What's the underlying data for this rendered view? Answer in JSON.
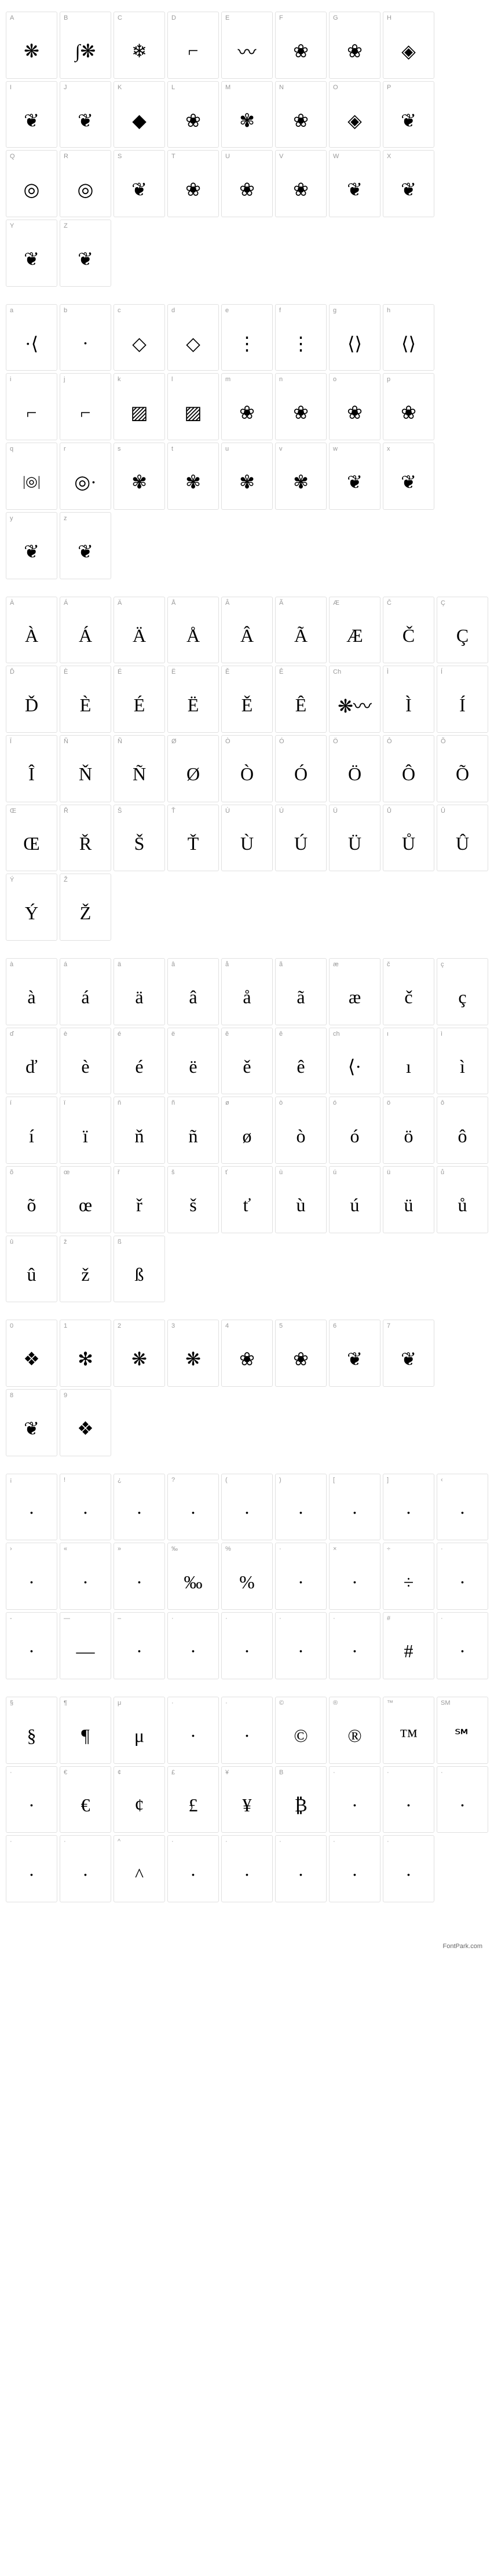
{
  "sections": [
    {
      "id": "upper",
      "cells": [
        {
          "label": "A",
          "glyph": "❋"
        },
        {
          "label": "B",
          "glyph": "∫❋"
        },
        {
          "label": "C",
          "glyph": "❄"
        },
        {
          "label": "D",
          "glyph": "⌐"
        },
        {
          "label": "E",
          "glyph": "〰"
        },
        {
          "label": "F",
          "glyph": "❀"
        },
        {
          "label": "G",
          "glyph": "❀"
        },
        {
          "label": "H",
          "glyph": "◈"
        },
        {
          "empty": true
        },
        {
          "label": "I",
          "glyph": "❦"
        },
        {
          "label": "J",
          "glyph": "❦"
        },
        {
          "label": "K",
          "glyph": "◆"
        },
        {
          "label": "L",
          "glyph": "❀"
        },
        {
          "label": "M",
          "glyph": "✾"
        },
        {
          "label": "N",
          "glyph": "❀"
        },
        {
          "label": "O",
          "glyph": "◈"
        },
        {
          "label": "P",
          "glyph": "❦"
        },
        {
          "empty": true
        },
        {
          "label": "Q",
          "glyph": "◎"
        },
        {
          "label": "R",
          "glyph": "◎"
        },
        {
          "label": "S",
          "glyph": "❦"
        },
        {
          "label": "T",
          "glyph": "❀"
        },
        {
          "label": "U",
          "glyph": "❀"
        },
        {
          "label": "V",
          "glyph": "❀"
        },
        {
          "label": "W",
          "glyph": "❦"
        },
        {
          "label": "X",
          "glyph": "❦"
        },
        {
          "empty": true
        },
        {
          "label": "Y",
          "glyph": "❦"
        },
        {
          "label": "Z",
          "glyph": "❦"
        },
        {
          "empty": true
        },
        {
          "empty": true
        },
        {
          "empty": true
        },
        {
          "empty": true
        },
        {
          "empty": true
        },
        {
          "empty": true
        },
        {
          "empty": true
        }
      ]
    },
    {
      "id": "lower",
      "cells": [
        {
          "label": "a",
          "glyph": "·⟨"
        },
        {
          "label": "b",
          "glyph": "·"
        },
        {
          "label": "c",
          "glyph": "◇"
        },
        {
          "label": "d",
          "glyph": "◇"
        },
        {
          "label": "e",
          "glyph": "⋮"
        },
        {
          "label": "f",
          "glyph": "⋮"
        },
        {
          "label": "g",
          "glyph": "⟨⟩"
        },
        {
          "label": "h",
          "glyph": "⟨⟩"
        },
        {
          "empty": true
        },
        {
          "label": "i",
          "glyph": "⌐"
        },
        {
          "label": "j",
          "glyph": "⌐"
        },
        {
          "label": "k",
          "glyph": "▨"
        },
        {
          "label": "l",
          "glyph": "▨"
        },
        {
          "label": "m",
          "glyph": "❀"
        },
        {
          "label": "n",
          "glyph": "❀"
        },
        {
          "label": "o",
          "glyph": "❀"
        },
        {
          "label": "p",
          "glyph": "❀"
        },
        {
          "empty": true
        },
        {
          "label": "q",
          "glyph": "|◎|"
        },
        {
          "label": "r",
          "glyph": "◎·"
        },
        {
          "label": "s",
          "glyph": "✾"
        },
        {
          "label": "t",
          "glyph": "✾"
        },
        {
          "label": "u",
          "glyph": "✾"
        },
        {
          "label": "v",
          "glyph": "✾"
        },
        {
          "label": "w",
          "glyph": "❦"
        },
        {
          "label": "x",
          "glyph": "❦"
        },
        {
          "empty": true
        },
        {
          "label": "y",
          "glyph": "❦"
        },
        {
          "label": "z",
          "glyph": "❦"
        },
        {
          "empty": true
        },
        {
          "empty": true
        },
        {
          "empty": true
        },
        {
          "empty": true
        },
        {
          "empty": true
        },
        {
          "empty": true
        },
        {
          "empty": true
        }
      ]
    },
    {
      "id": "accent-upper",
      "cells": [
        {
          "label": "À",
          "glyph": "À"
        },
        {
          "label": "Á",
          "glyph": "Á"
        },
        {
          "label": "Ä",
          "glyph": "Ä"
        },
        {
          "label": "Å",
          "glyph": "Å"
        },
        {
          "label": "Â",
          "glyph": "Â"
        },
        {
          "label": "Ã",
          "glyph": "Ã"
        },
        {
          "label": "Æ",
          "glyph": "Æ"
        },
        {
          "label": "Č",
          "glyph": "Č"
        },
        {
          "label": "Ç",
          "glyph": "Ç"
        },
        {
          "label": "Ď",
          "glyph": "Ď"
        },
        {
          "label": "È",
          "glyph": "È"
        },
        {
          "label": "É",
          "glyph": "É"
        },
        {
          "label": "Ë",
          "glyph": "Ë"
        },
        {
          "label": "Ě",
          "glyph": "Ě"
        },
        {
          "label": "Ê",
          "glyph": "Ê"
        },
        {
          "label": "Ch",
          "glyph": "❋〰"
        },
        {
          "label": "Ì",
          "glyph": "Ì"
        },
        {
          "label": "Í",
          "glyph": "Í"
        },
        {
          "label": "Ï",
          "glyph": "Î"
        },
        {
          "label": "Ň",
          "glyph": "Ň"
        },
        {
          "label": "Ñ",
          "glyph": "Ñ"
        },
        {
          "label": "Ø",
          "glyph": "Ø"
        },
        {
          "label": "Ò",
          "glyph": "Ò"
        },
        {
          "label": "Ó",
          "glyph": "Ó"
        },
        {
          "label": "Ö",
          "glyph": "Ö"
        },
        {
          "label": "Ô",
          "glyph": "Ô"
        },
        {
          "label": "Õ",
          "glyph": "Õ"
        },
        {
          "label": "Œ",
          "glyph": "Œ"
        },
        {
          "label": "Ř",
          "glyph": "Ř"
        },
        {
          "label": "Š",
          "glyph": "Š"
        },
        {
          "label": "Ť",
          "glyph": "Ť"
        },
        {
          "label": "Ù",
          "glyph": "Ù"
        },
        {
          "label": "Ú",
          "glyph": "Ú"
        },
        {
          "label": "Ü",
          "glyph": "Ü"
        },
        {
          "label": "Ů",
          "glyph": "Ů"
        },
        {
          "label": "Û",
          "glyph": "Û"
        },
        {
          "label": "Ý",
          "glyph": "Ý"
        },
        {
          "label": "Ž",
          "glyph": "Ž"
        },
        {
          "empty": true
        },
        {
          "empty": true
        },
        {
          "empty": true
        },
        {
          "empty": true
        },
        {
          "empty": true
        },
        {
          "empty": true
        },
        {
          "empty": true
        }
      ]
    },
    {
      "id": "accent-lower",
      "cells": [
        {
          "label": "à",
          "glyph": "à"
        },
        {
          "label": "á",
          "glyph": "á"
        },
        {
          "label": "ä",
          "glyph": "ä"
        },
        {
          "label": "â",
          "glyph": "â"
        },
        {
          "label": "å",
          "glyph": "å"
        },
        {
          "label": "ã",
          "glyph": "ã"
        },
        {
          "label": "æ",
          "glyph": "æ"
        },
        {
          "label": "č",
          "glyph": "č"
        },
        {
          "label": "ç",
          "glyph": "ç"
        },
        {
          "label": "ď",
          "glyph": "ď"
        },
        {
          "label": "è",
          "glyph": "è"
        },
        {
          "label": "é",
          "glyph": "é"
        },
        {
          "label": "ë",
          "glyph": "ë"
        },
        {
          "label": "ě",
          "glyph": "ě"
        },
        {
          "label": "ê",
          "glyph": "ê"
        },
        {
          "label": "ch",
          "glyph": "⟨·"
        },
        {
          "label": "ı",
          "glyph": "ı"
        },
        {
          "label": "ì",
          "glyph": "ì"
        },
        {
          "label": "í",
          "glyph": "í"
        },
        {
          "label": "ï",
          "glyph": "ï"
        },
        {
          "label": "ň",
          "glyph": "ň"
        },
        {
          "label": "ñ",
          "glyph": "ñ"
        },
        {
          "label": "ø",
          "glyph": "ø"
        },
        {
          "label": "ò",
          "glyph": "ò"
        },
        {
          "label": "ó",
          "glyph": "ó"
        },
        {
          "label": "ö",
          "glyph": "ö"
        },
        {
          "label": "ô",
          "glyph": "ô"
        },
        {
          "label": "õ",
          "glyph": "õ"
        },
        {
          "label": "œ",
          "glyph": "œ"
        },
        {
          "label": "ř",
          "glyph": "ř"
        },
        {
          "label": "š",
          "glyph": "š"
        },
        {
          "label": "ť",
          "glyph": "ť"
        },
        {
          "label": "ù",
          "glyph": "ù"
        },
        {
          "label": "ú",
          "glyph": "ú"
        },
        {
          "label": "ü",
          "glyph": "ü"
        },
        {
          "label": "ů",
          "glyph": "ů"
        },
        {
          "label": "û",
          "glyph": "û"
        },
        {
          "label": "ž",
          "glyph": "ž"
        },
        {
          "label": "ß",
          "glyph": "ß"
        },
        {
          "empty": true
        },
        {
          "empty": true
        },
        {
          "empty": true
        },
        {
          "empty": true
        },
        {
          "empty": true
        },
        {
          "empty": true
        }
      ]
    },
    {
      "id": "digits",
      "cells": [
        {
          "label": "0",
          "glyph": "❖"
        },
        {
          "label": "1",
          "glyph": "✻"
        },
        {
          "label": "2",
          "glyph": "❋"
        },
        {
          "label": "3",
          "glyph": "❋"
        },
        {
          "label": "4",
          "glyph": "❀"
        },
        {
          "label": "5",
          "glyph": "❀"
        },
        {
          "label": "6",
          "glyph": "❦"
        },
        {
          "label": "7",
          "glyph": "❦"
        },
        {
          "empty": true
        },
        {
          "label": "8",
          "glyph": "❦"
        },
        {
          "label": "9",
          "glyph": "❖"
        },
        {
          "empty": true
        },
        {
          "empty": true
        },
        {
          "empty": true
        },
        {
          "empty": true
        },
        {
          "empty": true
        },
        {
          "empty": true
        },
        {
          "empty": true
        }
      ]
    },
    {
      "id": "punct1",
      "cells": [
        {
          "label": "¡",
          "glyph": "·"
        },
        {
          "label": "!",
          "glyph": "·"
        },
        {
          "label": "¿",
          "glyph": "·"
        },
        {
          "label": "?",
          "glyph": "·"
        },
        {
          "label": "(",
          "glyph": "·"
        },
        {
          "label": ")",
          "glyph": "·"
        },
        {
          "label": "[",
          "glyph": "·"
        },
        {
          "label": "]",
          "glyph": "·"
        },
        {
          "label": "‹",
          "glyph": "·"
        },
        {
          "label": "›",
          "glyph": "·"
        },
        {
          "label": "«",
          "glyph": "·"
        },
        {
          "label": "»",
          "glyph": "·"
        },
        {
          "label": "‰",
          "glyph": "‰"
        },
        {
          "label": "%",
          "glyph": "%"
        },
        {
          "label": "·",
          "glyph": "·"
        },
        {
          "label": "×",
          "glyph": "·"
        },
        {
          "label": "÷",
          "glyph": "÷"
        },
        {
          "label": "·",
          "glyph": "·"
        },
        {
          "label": "-",
          "glyph": "·"
        },
        {
          "label": "—",
          "glyph": "—"
        },
        {
          "label": "–",
          "glyph": "·"
        },
        {
          "label": "·",
          "glyph": "·"
        },
        {
          "label": "·",
          "glyph": "·"
        },
        {
          "label": "·",
          "glyph": "·"
        },
        {
          "label": "·",
          "glyph": "·"
        },
        {
          "label": "#",
          "glyph": "#"
        },
        {
          "label": "·",
          "glyph": "·"
        }
      ]
    },
    {
      "id": "symbols",
      "cells": [
        {
          "label": "§",
          "glyph": "§"
        },
        {
          "label": "¶",
          "glyph": "¶"
        },
        {
          "label": "μ",
          "glyph": "μ"
        },
        {
          "label": "·",
          "glyph": "·"
        },
        {
          "label": "·",
          "glyph": "·"
        },
        {
          "label": "©",
          "glyph": "©"
        },
        {
          "label": "®",
          "glyph": "®"
        },
        {
          "label": "™",
          "glyph": "™"
        },
        {
          "label": "SM",
          "glyph": "℠"
        },
        {
          "label": "·",
          "glyph": "·"
        },
        {
          "label": "€",
          "glyph": "€"
        },
        {
          "label": "¢",
          "glyph": "¢"
        },
        {
          "label": "£",
          "glyph": "£"
        },
        {
          "label": "¥",
          "glyph": "¥"
        },
        {
          "label": "B",
          "glyph": "₿"
        },
        {
          "label": "·",
          "glyph": "·"
        },
        {
          "label": "·",
          "glyph": "·"
        },
        {
          "label": "·",
          "glyph": "·"
        },
        {
          "label": "·",
          "glyph": "·"
        },
        {
          "label": "·",
          "glyph": "·"
        },
        {
          "label": "^",
          "glyph": "^"
        },
        {
          "label": "·",
          "glyph": "·"
        },
        {
          "label": "·",
          "glyph": "·"
        },
        {
          "label": "·",
          "glyph": "·"
        },
        {
          "label": "·",
          "glyph": "·"
        },
        {
          "label": "·",
          "glyph": "·"
        },
        {
          "empty": true
        }
      ]
    }
  ],
  "footer": "FontPark.com",
  "colors": {
    "border": "#e0e0e0",
    "label": "#999999",
    "glyph": "#000000",
    "bg": "#ffffff"
  }
}
